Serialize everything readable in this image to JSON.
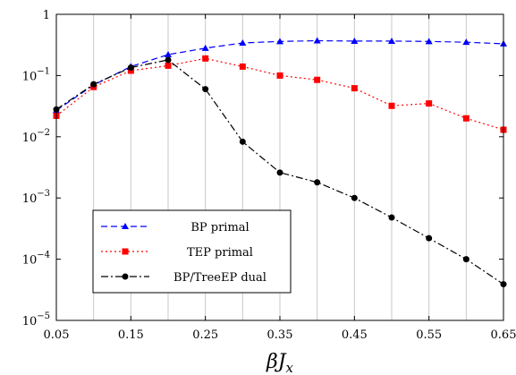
{
  "chart_data": {
    "type": "line",
    "xlabel": "βJ_x",
    "ylabel": "",
    "y_scale": "log",
    "xlim": [
      0.05,
      0.65
    ],
    "ylim": [
      1e-05,
      1
    ],
    "grid": {
      "vertical": true,
      "horizontal": false
    },
    "legend_position": "bottom-left",
    "x_ticks": [
      0.05,
      0.15,
      0.25,
      0.35,
      0.45,
      0.55,
      0.65
    ],
    "x_tick_labels": [
      "0.05",
      "0.15",
      "0.25",
      "0.35",
      "0.45",
      "0.55",
      "0.65"
    ],
    "x_grid": [
      0.1,
      0.15,
      0.2,
      0.25,
      0.3,
      0.35,
      0.4,
      0.45,
      0.5,
      0.55,
      0.6
    ],
    "y_ticks": [
      {
        "value": 1,
        "base": "1",
        "exp": ""
      },
      {
        "value": 0.1,
        "base": "10",
        "exp": "−1"
      },
      {
        "value": 0.01,
        "base": "10",
        "exp": "−2"
      },
      {
        "value": 0.001,
        "base": "10",
        "exp": "−3"
      },
      {
        "value": 0.0001,
        "base": "10",
        "exp": "−4"
      },
      {
        "value": 1e-05,
        "base": "10",
        "exp": "−5"
      }
    ],
    "x": [
      0.05,
      0.1,
      0.15,
      0.2,
      0.25,
      0.3,
      0.35,
      0.4,
      0.45,
      0.5,
      0.55,
      0.6,
      0.65
    ],
    "series": [
      {
        "name": "BP primal",
        "color": "#0000ff",
        "dash": "dashed",
        "marker": "triangle",
        "values": [
          0.027,
          0.07,
          0.14,
          0.22,
          0.28,
          0.34,
          0.36,
          0.37,
          0.365,
          0.365,
          0.36,
          0.35,
          0.33
        ]
      },
      {
        "name": "TEP primal",
        "color": "#ff0000",
        "dash": "dotted",
        "marker": "square",
        "values": [
          0.022,
          0.065,
          0.12,
          0.145,
          0.19,
          0.14,
          0.1,
          0.085,
          0.062,
          0.032,
          0.035,
          0.02,
          0.013
        ]
      },
      {
        "name": "BP/TreeEP dual",
        "color": "#000000",
        "dash": "dashdot",
        "marker": "circle",
        "values": [
          0.028,
          0.072,
          0.135,
          0.18,
          0.06,
          0.0083,
          0.0026,
          0.0018,
          0.001,
          0.00048,
          0.00022,
          0.0001,
          3.9e-05
        ]
      }
    ]
  }
}
